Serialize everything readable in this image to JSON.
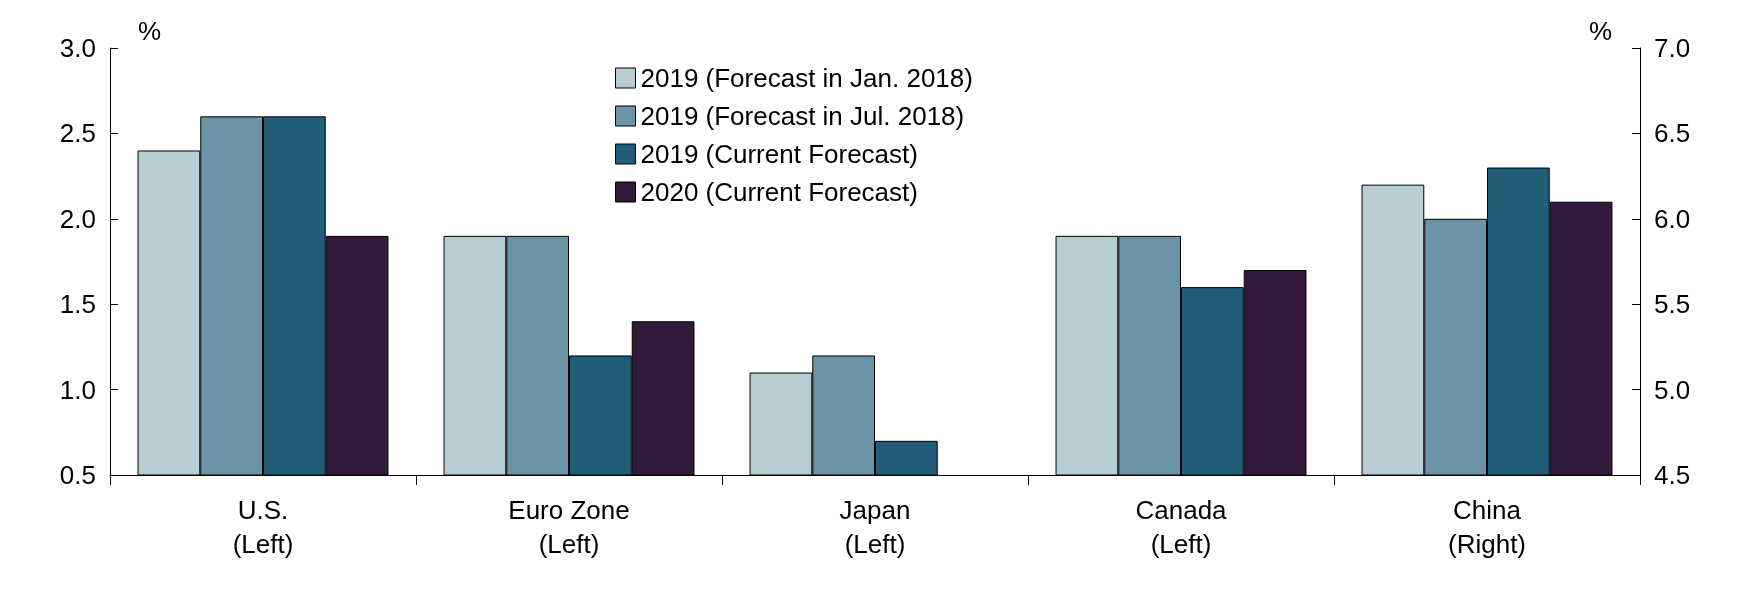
{
  "chart_data": {
    "type": "bar",
    "categories": [
      "U.S.\n(Left)",
      "Euro Zone\n(Left)",
      "Japan\n(Left)",
      "Canada\n(Left)",
      "China\n(Right)"
    ],
    "ylabel": "%",
    "y2label": "%",
    "ylim": [
      0.5,
      3.0
    ],
    "yticks": [
      {
        "value": 0.5,
        "label": "0.5"
      },
      {
        "value": 1.0,
        "label": "1.0"
      },
      {
        "value": 1.5,
        "label": "1.5"
      },
      {
        "value": 2.0,
        "label": "2.0"
      },
      {
        "value": 2.5,
        "label": "2.5"
      },
      {
        "value": 3.0,
        "label": "3.0"
      }
    ],
    "y2lim": [
      4.5,
      7.0
    ],
    "y2ticks": [
      {
        "value": 4.5,
        "label": "4.5"
      },
      {
        "value": 5.0,
        "label": "5.0"
      },
      {
        "value": 5.5,
        "label": "5.5"
      },
      {
        "value": 6.0,
        "label": "6.0"
      },
      {
        "value": 6.5,
        "label": "6.5"
      },
      {
        "value": 7.0,
        "label": "7.0"
      }
    ],
    "series": [
      {
        "name": "2019 (Forecast in Jan. 2018)",
        "color": "#b8ccd4",
        "values": [
          2.4,
          1.9,
          1.1,
          1.9,
          null
        ]
      },
      {
        "name": "2019 (Forecast in Jul. 2018)",
        "color": "#6a94a6",
        "values": [
          2.6,
          1.9,
          1.2,
          1.9,
          null
        ]
      },
      {
        "name": "2019 (Current Forecast)",
        "color": "#215d78",
        "values": [
          2.6,
          1.2,
          0.7,
          1.6,
          null
        ]
      },
      {
        "name": "2020 (Current Forecast)",
        "color": "#321a3a",
        "values": [
          1.9,
          1.4,
          null,
          1.7,
          null
        ]
      },
      {
        "color": "#b8ccd4",
        "axis": "y2",
        "values": [
          null,
          null,
          null,
          null,
          6.2
        ]
      },
      {
        "color": "#6a94a6",
        "axis": "y2",
        "values": [
          null,
          null,
          null,
          null,
          6.0
        ]
      },
      {
        "color": "#215d78",
        "axis": "y2",
        "values": [
          null,
          null,
          null,
          null,
          6.3
        ]
      },
      {
        "color": "#321a3a",
        "axis": "y2",
        "values": [
          null,
          null,
          null,
          null,
          6.1
        ]
      }
    ],
    "legend": "top",
    "grid": false
  }
}
